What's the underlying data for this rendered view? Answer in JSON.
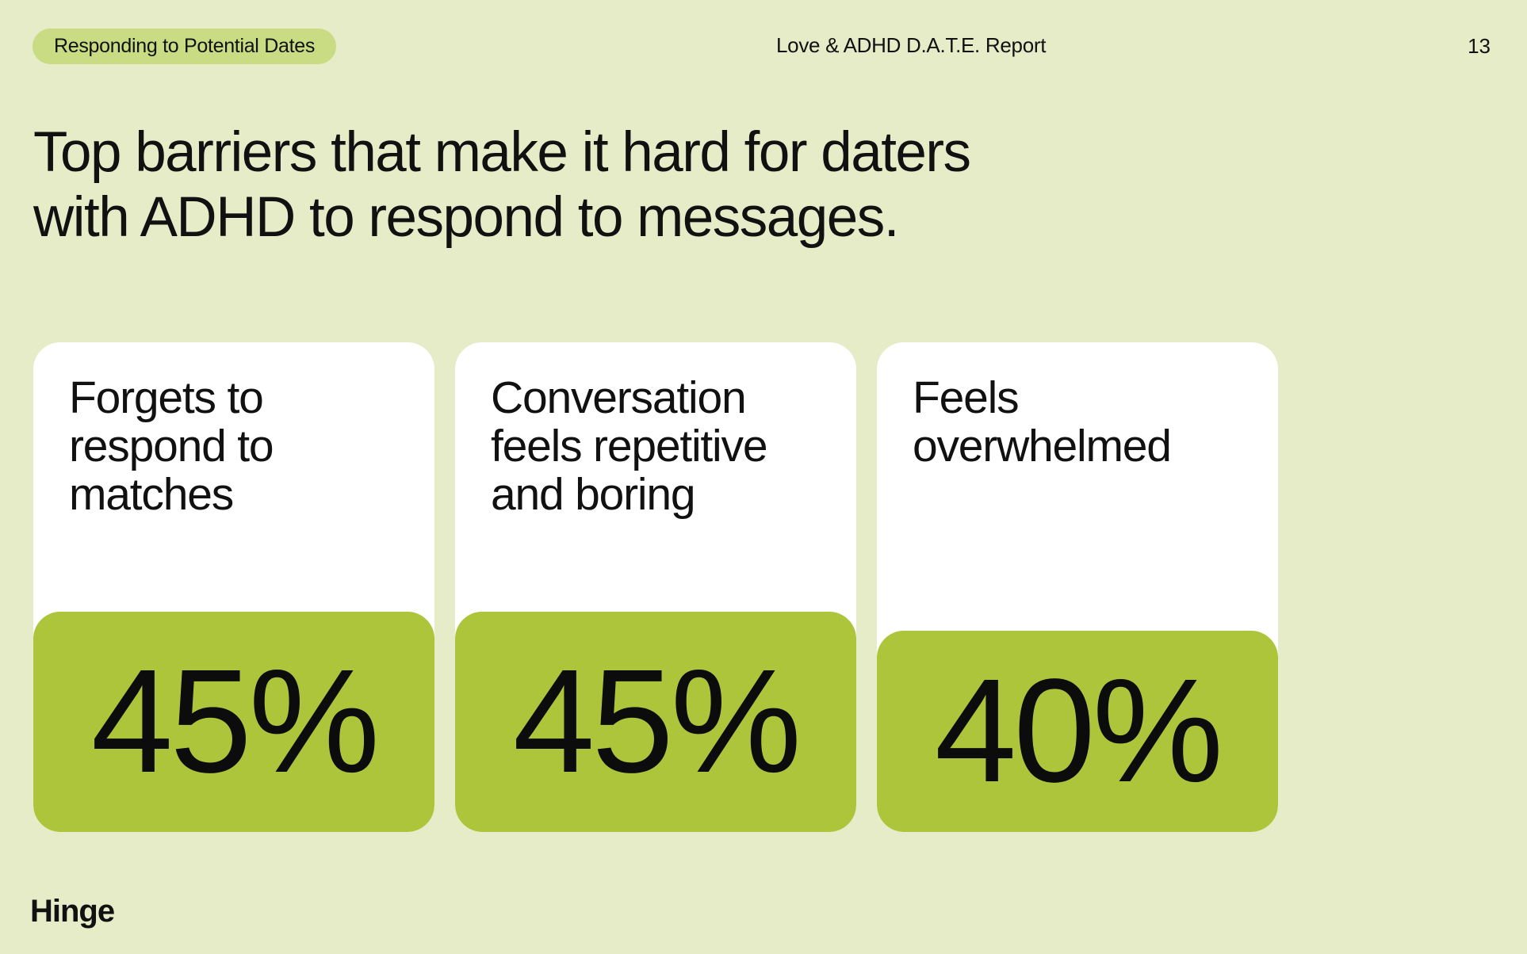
{
  "header": {
    "section_label": "Responding to Potential Dates",
    "report_title": "Love & ADHD D.A.T.E. Report",
    "page_number": "13"
  },
  "headline": {
    "lines": [
      "Top barriers that make it hard for daters",
      "with ADHD to respond to messages."
    ]
  },
  "cards": [
    {
      "label_lines": [
        "Forgets to",
        "respond to",
        "matches"
      ],
      "value": "45%"
    },
    {
      "label_lines": [
        "Conversation",
        "feels repetitive",
        "and boring"
      ],
      "value": "45%"
    },
    {
      "label_lines": [
        "Feels",
        "overwhelmed"
      ],
      "value": "40%"
    }
  ],
  "footer": {
    "logo_text": "Hinge"
  },
  "colors": {
    "background": "#e6ecc7",
    "pill": "#c9dc83",
    "stat_block": "#adc53a",
    "card": "#ffffff",
    "text": "#111111"
  }
}
